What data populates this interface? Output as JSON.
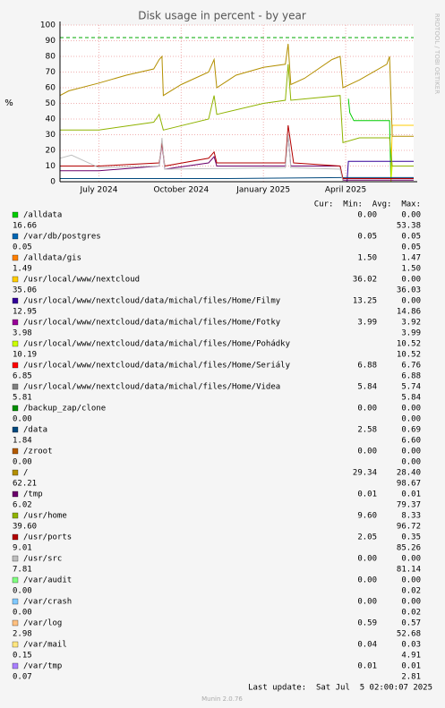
{
  "chart_data": {
    "type": "line",
    "title": "Disk usage in percent - by year",
    "y_label": "%",
    "side_text": "RRDTOOL / TOBI OETIKER",
    "ylim": [
      0,
      100
    ],
    "yticks": [
      0,
      10,
      20,
      30,
      40,
      50,
      60,
      70,
      80,
      90,
      100
    ],
    "xlim": [
      -1.42,
      11.48
    ],
    "xticks": [
      {
        "value": 0,
        "label": "July 2024"
      },
      {
        "value": 3,
        "label": "October 2024"
      },
      {
        "value": 6,
        "label": "January 2025"
      },
      {
        "value": 9,
        "label": "April 2025"
      }
    ],
    "warning_line": 92,
    "grid": true,
    "legend_header": "Cur:  Min:  Avg:  Max:",
    "last_update": "Last update:  Sat Jul  5 02:00:07 2025",
    "footer": "Munin 2.0.76",
    "series": [
      {
        "name": "/alldata",
        "color": "#00cc00",
        "stats_line1": [
          "0.00",
          "0.00"
        ],
        "stats_line2": [
          "16.66",
          "53.38"
        ],
        "x": [
          9.1,
          9.15,
          9.3,
          10.6,
          10.65,
          11.48
        ],
        "values": [
          53,
          44,
          39,
          39,
          0,
          0
        ]
      },
      {
        "name": "/var/db/postgres",
        "color": "#0066b3",
        "stats_line1": [
          "0.05",
          "0.05"
        ],
        "stats_line2": [
          "0.05",
          "0.05"
        ]
      },
      {
        "name": "/alldata/gis",
        "color": "#ff8000",
        "stats_line1": [
          "1.50",
          "1.47"
        ],
        "stats_line2": [
          "1.49",
          "1.50"
        ]
      },
      {
        "name": "/usr/local/www/nextcloud",
        "color": "#ffcc00",
        "stats_line1": [
          "36.02",
          "0.00"
        ],
        "stats_line2": [
          "35.06",
          "36.03"
        ],
        "x": [
          10.65,
          10.7,
          11.48
        ],
        "values": [
          0,
          36,
          36
        ]
      },
      {
        "name": "/usr/local/www/nextcloud/data/michal/files/Home/Filmy",
        "color": "#330099",
        "stats_line1": [
          "13.25",
          "0.00"
        ],
        "stats_line2": [
          "12.95",
          "14.86"
        ],
        "x": [
          9.05,
          9.1,
          11.48
        ],
        "values": [
          0,
          13,
          13
        ]
      },
      {
        "name": "/usr/local/www/nextcloud/data/michal/files/Home/Fotky",
        "color": "#990099",
        "stats_line1": [
          "3.99",
          "3.92"
        ],
        "stats_line2": [
          "3.98",
          "3.99"
        ]
      },
      {
        "name": "/usr/local/www/nextcloud/data/michal/files/Home/Pohádky",
        "color": "#ccff00",
        "stats_line1": [
          "10.52"
        ],
        "stats_line2": [
          "10.19",
          "10.52"
        ],
        "x": [
          10.65,
          10.7,
          11.48
        ],
        "values": [
          0,
          10,
          10
        ]
      },
      {
        "name": "/usr/local/www/nextcloud/data/michal/files/Home/Seriály",
        "color": "#ff0000",
        "stats_line1": [
          "6.88",
          "6.76"
        ],
        "stats_line2": [
          "6.85",
          "6.88"
        ]
      },
      {
        "name": "/usr/local/www/nextcloud/data/michal/files/Home/Videa",
        "color": "#808080",
        "stats_line1": [
          "5.84",
          "5.74"
        ],
        "stats_line2": [
          "5.81",
          "5.84"
        ]
      },
      {
        "name": "/backup_zap/clone",
        "color": "#008f00",
        "stats_line1": [
          "0.00",
          "0.00"
        ],
        "stats_line2": [
          "0.00",
          "0.00"
        ]
      },
      {
        "name": "/data",
        "color": "#00487d",
        "stats_line1": [
          "2.58",
          "0.69"
        ],
        "stats_line2": [
          "1.84",
          "6.60"
        ],
        "x": [
          -1.42,
          4.5,
          9.0,
          11.48
        ],
        "values": [
          2,
          2,
          2.6,
          2.6
        ]
      },
      {
        "name": "/zroot",
        "color": "#b35a00",
        "stats_line1": [
          "0.00",
          "0.00"
        ],
        "stats_line2": [
          "0.00",
          "0.00"
        ]
      },
      {
        "name": "/",
        "color": "#b38f00",
        "stats_line1": [
          "29.34",
          "28.40"
        ],
        "stats_line2": [
          "62.21",
          "98.67"
        ],
        "x": [
          -1.42,
          -1.1,
          0,
          1,
          2,
          2.2,
          2.3,
          2.35,
          3,
          4,
          4.2,
          4.3,
          5,
          6,
          6.8,
          6.9,
          7.0,
          7.5,
          8.5,
          8.8,
          8.9,
          9.5,
          10.5,
          10.6,
          10.7,
          11.48
        ],
        "values": [
          55,
          58,
          63,
          68,
          72,
          78,
          80,
          55,
          62,
          70,
          78,
          60,
          68,
          73,
          75,
          88,
          62,
          66,
          78,
          80,
          60,
          65,
          75,
          80,
          29,
          29
        ]
      },
      {
        "name": "/tmp",
        "color": "#6b006b",
        "stats_line1": [
          "0.01",
          "0.01"
        ],
        "stats_line2": [
          "6.02",
          "79.37"
        ],
        "x": [
          -1.42,
          0,
          2.2,
          2.3,
          2.4,
          4,
          4.2,
          4.3,
          6.8,
          6.9,
          7.0,
          8.8,
          8.9,
          11.48
        ],
        "values": [
          7,
          7,
          10,
          25,
          8,
          12,
          16,
          10,
          10,
          30,
          10,
          10,
          1,
          1
        ]
      },
      {
        "name": "/usr/home",
        "color": "#8fb300",
        "stats_line1": [
          "9.60",
          "8.33"
        ],
        "stats_line2": [
          "39.60",
          "96.72"
        ],
        "x": [
          -1.42,
          0,
          2,
          2.2,
          2.35,
          4,
          4.2,
          4.3,
          6,
          6.8,
          6.9,
          7.0,
          8.8,
          8.9,
          9.5,
          10.6,
          10.7,
          11.48
        ],
        "values": [
          33,
          33,
          38,
          43,
          33,
          40,
          55,
          43,
          50,
          52,
          75,
          52,
          55,
          25,
          28,
          28,
          10,
          10
        ]
      },
      {
        "name": "/usr/ports",
        "color": "#b30000",
        "stats_line1": [
          "2.05",
          "0.35"
        ],
        "stats_line2": [
          "9.01",
          "85.26"
        ],
        "x": [
          -1.42,
          0,
          2.2,
          2.3,
          2.4,
          4,
          4.2,
          4.3,
          6.8,
          6.9,
          7.1,
          8.8,
          8.9,
          11.48
        ],
        "values": [
          10,
          10,
          12,
          25,
          10,
          15,
          19,
          12,
          12,
          36,
          12,
          10,
          2,
          2
        ]
      },
      {
        "name": "/usr/src",
        "color": "#bebebe",
        "stats_line1": [
          "0.00",
          "0.00"
        ],
        "stats_line2": [
          "7.81",
          "81.14"
        ],
        "x": [
          -1.42,
          -1.0,
          0,
          2.2,
          2.3,
          2.4,
          6.8,
          6.9,
          7.0,
          8.8,
          8.9,
          11.48
        ],
        "values": [
          15,
          17,
          9,
          10,
          28,
          8,
          9,
          30,
          9,
          8,
          0,
          0
        ]
      },
      {
        "name": "/var/audit",
        "color": "#80ff80",
        "stats_line1": [
          "0.00",
          "0.00"
        ],
        "stats_line2": [
          "0.00",
          "0.02"
        ]
      },
      {
        "name": "/var/crash",
        "color": "#80c9ff",
        "stats_line1": [
          "0.00",
          "0.00"
        ],
        "stats_line2": [
          "0.00",
          "0.02"
        ]
      },
      {
        "name": "/var/log",
        "color": "#ffc080",
        "stats_line1": [
          "0.59",
          "0.57"
        ],
        "stats_line2": [
          "2.98",
          "52.68"
        ]
      },
      {
        "name": "/var/mail",
        "color": "#ffe680",
        "stats_line1": [
          "0.04",
          "0.03"
        ],
        "stats_line2": [
          "0.15",
          "4.91"
        ]
      },
      {
        "name": "/var/tmp",
        "color": "#aa80ff",
        "stats_line1": [
          "0.01",
          "0.01"
        ],
        "stats_line2": [
          "0.07",
          "2.81"
        ]
      }
    ]
  }
}
